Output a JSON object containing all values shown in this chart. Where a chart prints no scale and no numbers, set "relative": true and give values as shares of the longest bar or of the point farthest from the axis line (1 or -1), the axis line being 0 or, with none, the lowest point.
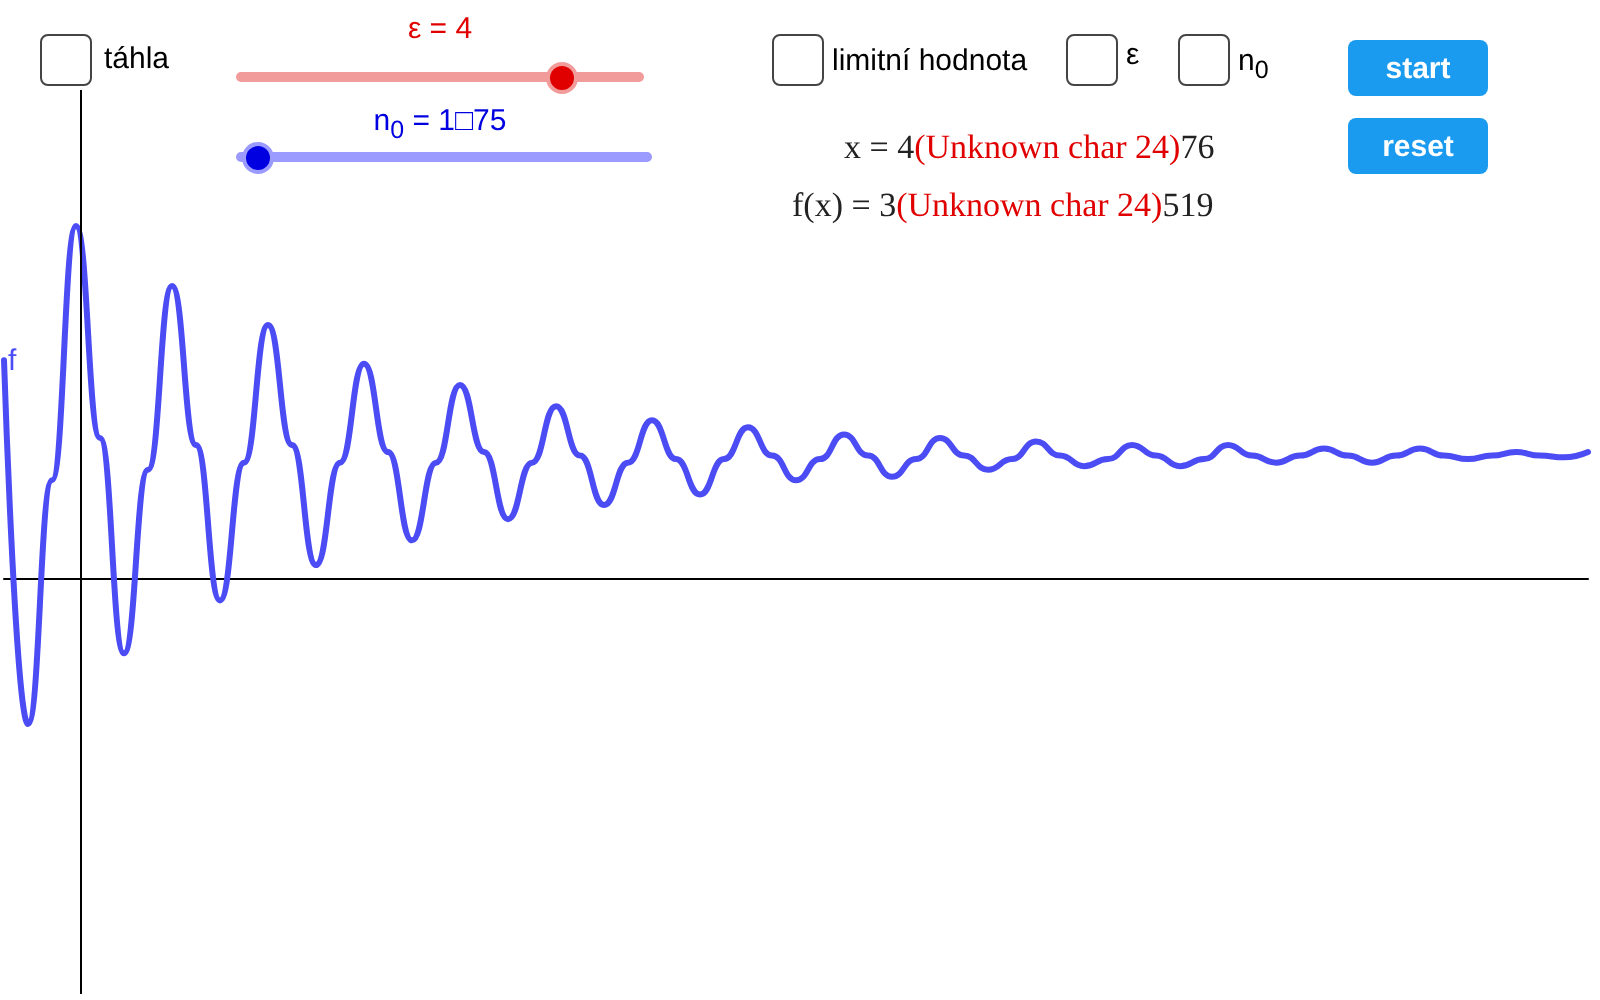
{
  "chart_data": {
    "type": "line",
    "relative": true,
    "grid": false,
    "legend": false,
    "marker": "none",
    "line_style": "solid",
    "tick_labels": false,
    "categories": [
      null,
      null,
      null,
      null,
      null,
      null,
      null,
      null,
      null,
      null,
      null,
      null,
      null,
      null,
      null,
      null,
      null,
      null,
      null,
      null,
      null,
      null,
      null,
      null,
      null,
      null,
      null,
      null,
      null,
      null,
      null,
      null,
      null,
      null,
      null,
      null,
      null,
      null,
      null,
      null,
      null,
      null,
      null,
      null,
      null,
      null,
      null,
      null,
      null,
      null,
      null,
      null,
      null,
      null,
      null,
      null,
      null,
      null,
      null,
      null,
      null,
      null,
      null,
      null,
      null,
      null,
      null
    ],
    "series": [
      {
        "name": "f",
        "color": "#4c4cf5",
        "values": [
          0.62,
          -0.41,
          0.28,
          1.0,
          0.4,
          -0.21,
          0.31,
          0.83,
          0.38,
          -0.06,
          0.33,
          0.72,
          0.38,
          0.04,
          0.33,
          0.61,
          0.36,
          0.11,
          0.33,
          0.55,
          0.36,
          0.17,
          0.33,
          0.49,
          0.35,
          0.21,
          0.33,
          0.45,
          0.34,
          0.24,
          0.34,
          0.43,
          0.35,
          0.28,
          0.34,
          0.41,
          0.35,
          0.29,
          0.34,
          0.4,
          0.35,
          0.31,
          0.34,
          0.39,
          0.35,
          0.32,
          0.34,
          0.38,
          0.35,
          0.32,
          0.34,
          0.38,
          0.35,
          0.33,
          0.35,
          0.37,
          0.35,
          0.33,
          0.35,
          0.37,
          0.35,
          0.34,
          0.35,
          0.36,
          0.35,
          0.345,
          0.36
        ]
      }
    ],
    "annotations": [
      "táhla",
      "ε = 4",
      "n$_{0}$ = 1□75",
      "limitní hodnota",
      "ε",
      "n$_{0}$",
      "start",
      "reset",
      "x = 4(Unknown char 24)76",
      "f(x) = 3(Unknown char 24)519"
    ]
  }
}
